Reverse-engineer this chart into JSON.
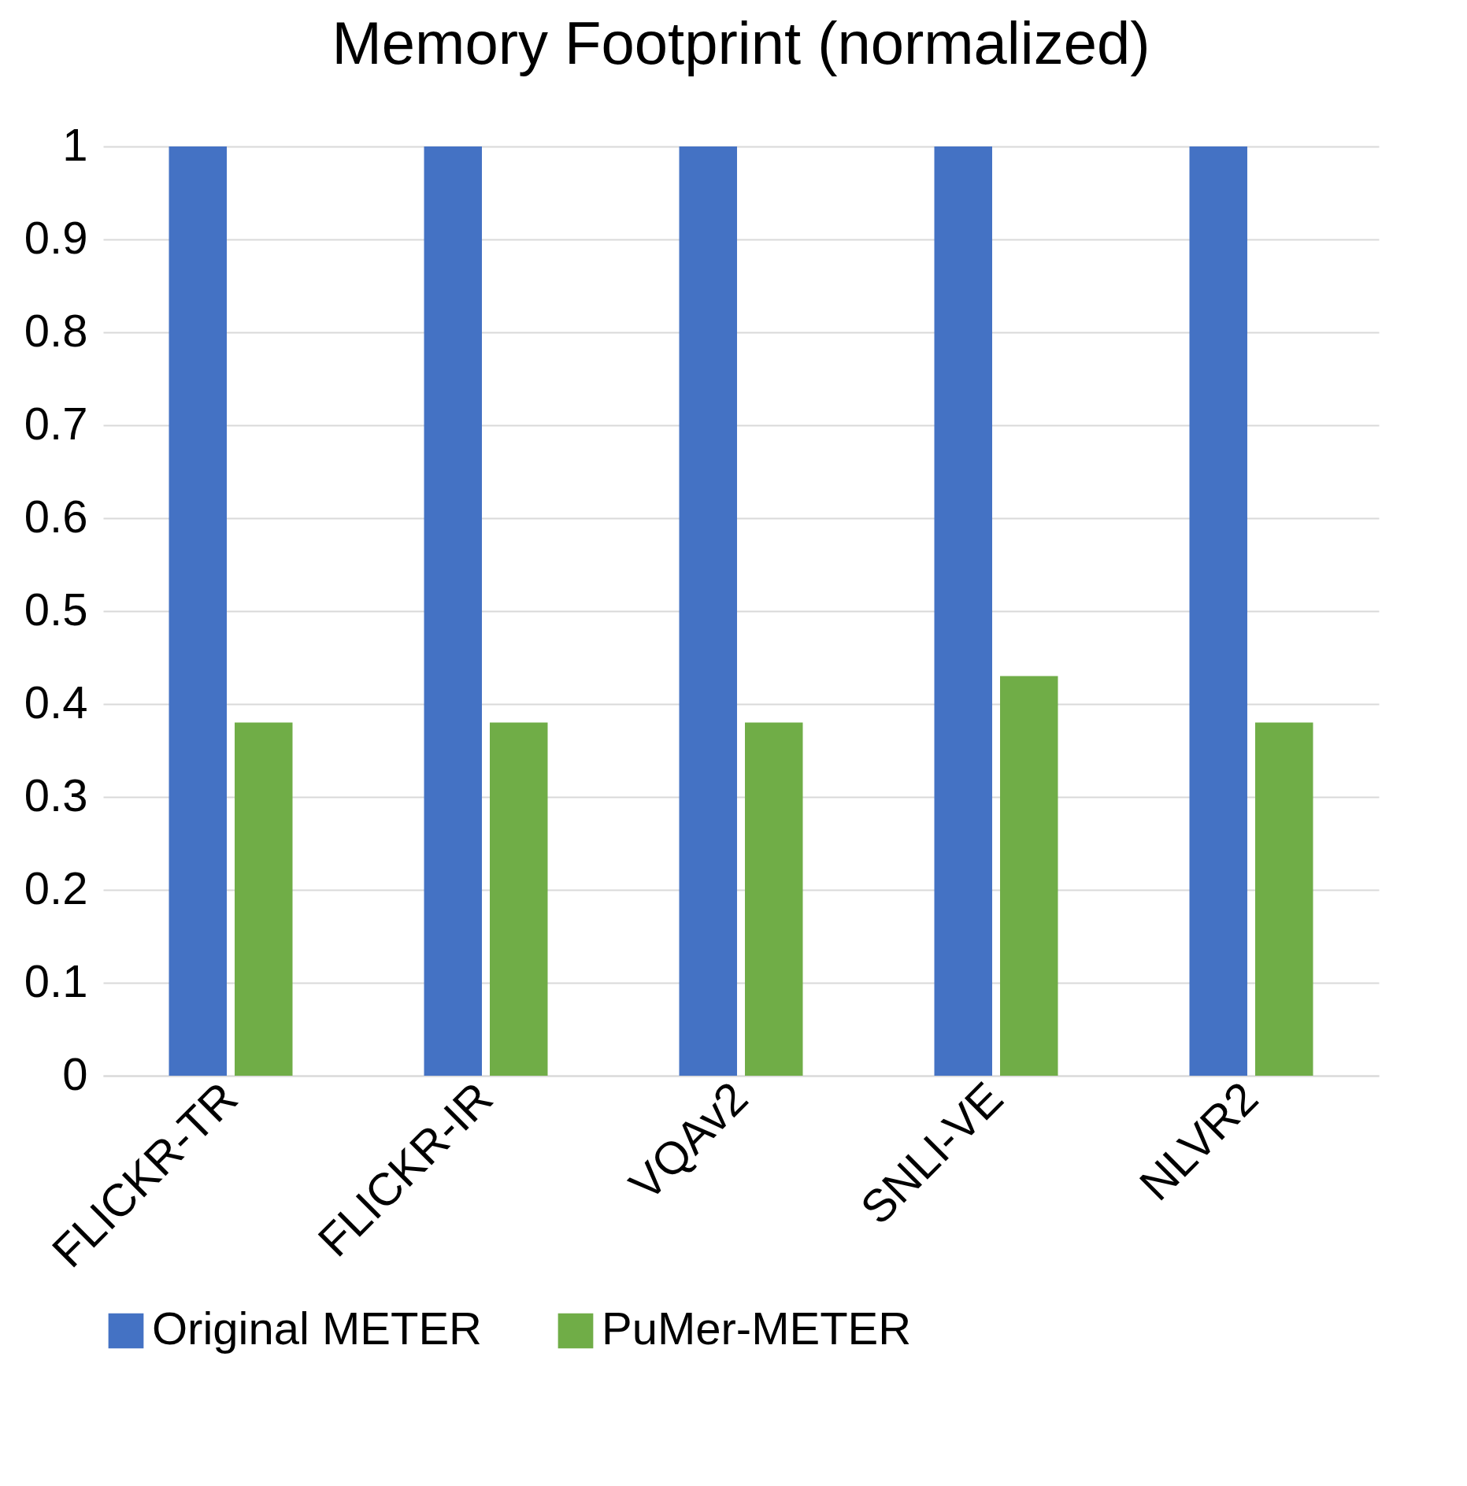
{
  "chart_data": {
    "type": "bar",
    "title": "Memory Footprint (normalized)",
    "categories": [
      "FLICKR-TR",
      "FLICKR-IR",
      "VQAv2",
      "SNLI-VE",
      "NLVR2"
    ],
    "series": [
      {
        "name": "Original METER",
        "color": "#4472c4",
        "values": [
          1,
          1,
          1,
          1,
          1
        ]
      },
      {
        "name": "PuMer-METER",
        "color": "#70ad47",
        "values": [
          0.38,
          0.38,
          0.38,
          0.43,
          0.38
        ]
      }
    ],
    "ylim": [
      0,
      1
    ],
    "yticks": [
      0,
      0.1,
      0.2,
      0.3,
      0.4,
      0.5,
      0.6,
      0.7,
      0.8,
      0.9,
      1
    ],
    "grid": "y",
    "legend": "bottom"
  }
}
